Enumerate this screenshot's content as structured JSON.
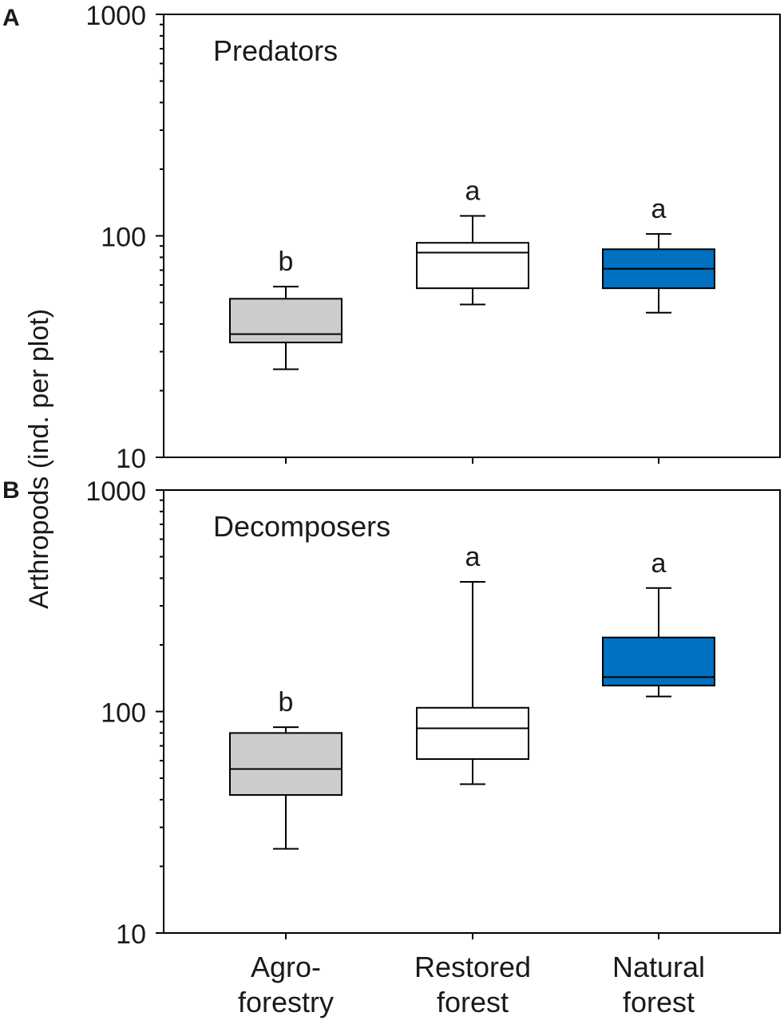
{
  "chart_data": [
    {
      "type": "box",
      "panel_letter": "A",
      "title": "Predators",
      "yscale": "log",
      "ylim": [
        10,
        1000
      ],
      "y_ticks": [
        10,
        100,
        1000
      ],
      "y_tick_labels": [
        "10",
        "100",
        "1000"
      ],
      "grid": false,
      "categories": [
        "Agro-forestry",
        "Restored forest",
        "Natural forest"
      ],
      "boxes": [
        {
          "category": "Agro-forestry",
          "whisker_low": 25,
          "q1": 33,
          "median": 36,
          "q3": 52,
          "whisker_high": 59,
          "letter": "b",
          "color": "#cccccc"
        },
        {
          "category": "Restored forest",
          "whisker_low": 49,
          "q1": 58,
          "median": 84,
          "q3": 93,
          "whisker_high": 123,
          "letter": "a",
          "color": "#ffffff"
        },
        {
          "category": "Natural forest",
          "whisker_low": 45,
          "q1": 58,
          "median": 71,
          "q3": 87,
          "whisker_high": 102,
          "letter": "a",
          "color": "#0070c0"
        }
      ]
    },
    {
      "type": "box",
      "panel_letter": "B",
      "title": "Decomposers",
      "yscale": "log",
      "ylim": [
        10,
        1000
      ],
      "y_ticks": [
        10,
        100,
        1000
      ],
      "y_tick_labels": [
        "10",
        "100",
        "1000"
      ],
      "grid": false,
      "categories": [
        "Agro-forestry",
        "Restored forest",
        "Natural forest"
      ],
      "boxes": [
        {
          "category": "Agro-forestry",
          "whisker_low": 24,
          "q1": 42,
          "median": 55,
          "q3": 80,
          "whisker_high": 85,
          "letter": "b",
          "color": "#cccccc"
        },
        {
          "category": "Restored forest",
          "whisker_low": 47,
          "q1": 61,
          "median": 84,
          "q3": 104,
          "whisker_high": 385,
          "letter": "a",
          "color": "#ffffff"
        },
        {
          "category": "Natural forest",
          "whisker_low": 117,
          "q1": 131,
          "median": 143,
          "q3": 216,
          "whisker_high": 361,
          "letter": "a",
          "color": "#0070c0"
        }
      ]
    }
  ],
  "ylabel": "Arthropods (ind. per plot)",
  "x_labels": [
    [
      "Agro-",
      "forestry"
    ],
    [
      "Restored",
      "forest"
    ],
    [
      "Natural",
      "forest"
    ]
  ]
}
